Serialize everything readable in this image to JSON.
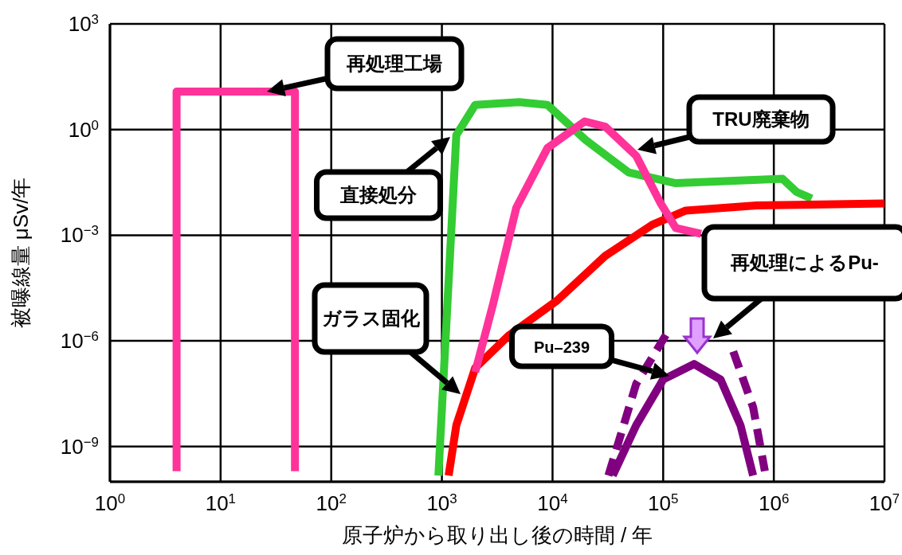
{
  "chart_data": {
    "type": "line",
    "xlabel": "原子炉から取り出し後の時間 / 年",
    "ylabel": "被曝線量 μSv/年",
    "log": "xy",
    "grid": true,
    "legend": false,
    "marker": "none",
    "line_style": "solid",
    "xlim": [
      1,
      10000000
    ],
    "ylim": [
      1e-10,
      1000
    ],
    "xticks": [
      {
        "value": 1,
        "label": "10$^{0}$"
      },
      {
        "value": 10,
        "label": "10$^{1}$"
      },
      {
        "value": 100,
        "label": "10$^{2}$"
      },
      {
        "value": 1000,
        "label": "10$^{3}$"
      },
      {
        "value": 10000,
        "label": "10$^{4}$"
      },
      {
        "value": 100000,
        "label": "10$^{5}$"
      },
      {
        "value": 1000000,
        "label": "10$^{6}$"
      },
      {
        "value": 10000000,
        "label": "10$^{7}$"
      }
    ],
    "yticks": [
      {
        "value": 1e-09,
        "label": "10$^{−9}$"
      },
      {
        "value": 1e-06,
        "label": "10$^{−6}$"
      },
      {
        "value": 0.001,
        "label": "10$^{−3}$"
      },
      {
        "value": 1,
        "label": "10$^{0}$"
      },
      {
        "value": 1000,
        "label": "10$^{3}$"
      }
    ],
    "series": [
      {
        "color": "#ff3399",
        "x": [
          4,
          4,
          47,
          47
        ],
        "values": [
          2e-10,
          12,
          12,
          2e-10
        ]
      },
      {
        "color": "#33cc33",
        "x": [
          930,
          1350,
          2000,
          5000,
          9000,
          20000,
          49000,
          130000,
          1200000,
          1600000,
          2200000
        ],
        "values": [
          1.5e-10,
          0.7,
          5,
          6,
          5,
          0.5,
          0.06,
          0.03,
          0.04,
          0.017,
          0.011
        ]
      },
      {
        "color": "#ff0000",
        "x": [
          1150,
          1350,
          2000,
          4000,
          11000,
          30000,
          80000,
          160000,
          700000,
          10000000
        ],
        "values": [
          1.5e-10,
          4e-09,
          1.7e-07,
          1.4e-06,
          1.4e-05,
          0.00026,
          0.002,
          0.005,
          0.007,
          0.008
        ]
      },
      {
        "color": "#ff3399",
        "x": [
          2000,
          2900,
          4700,
          9000,
          19500,
          30000,
          57000,
          95000,
          130000,
          220000
        ],
        "values": [
          1.3e-07,
          1.1e-05,
          0.006,
          0.3,
          1.7,
          1.2,
          0.18,
          0.008,
          0.0016,
          0.0011
        ]
      },
      {
        "color": "#800080",
        "x": [
          35000,
          57000,
          100000,
          190000,
          330000,
          500000,
          650000
        ],
        "values": [
          1.5e-10,
          4e-09,
          8e-08,
          2.2e-07,
          8e-08,
          4e-09,
          1.5e-10
        ]
      },
      {
        "color": "#800080",
        "line_style": "dashed",
        "x": [
          32000,
          57000,
          110000,
          220000,
          430000,
          650000,
          830000
        ],
        "values": [
          1.5e-10,
          6e-08,
          1.8e-06,
          null,
          5e-07,
          1.3e-08,
          2e-10
        ]
      }
    ],
    "annotations": [
      "再処理工場",
      "TRU廃棄物",
      "直接処分",
      "ガラス固化",
      "Pu–239",
      "再処理によるPu-"
    ]
  }
}
